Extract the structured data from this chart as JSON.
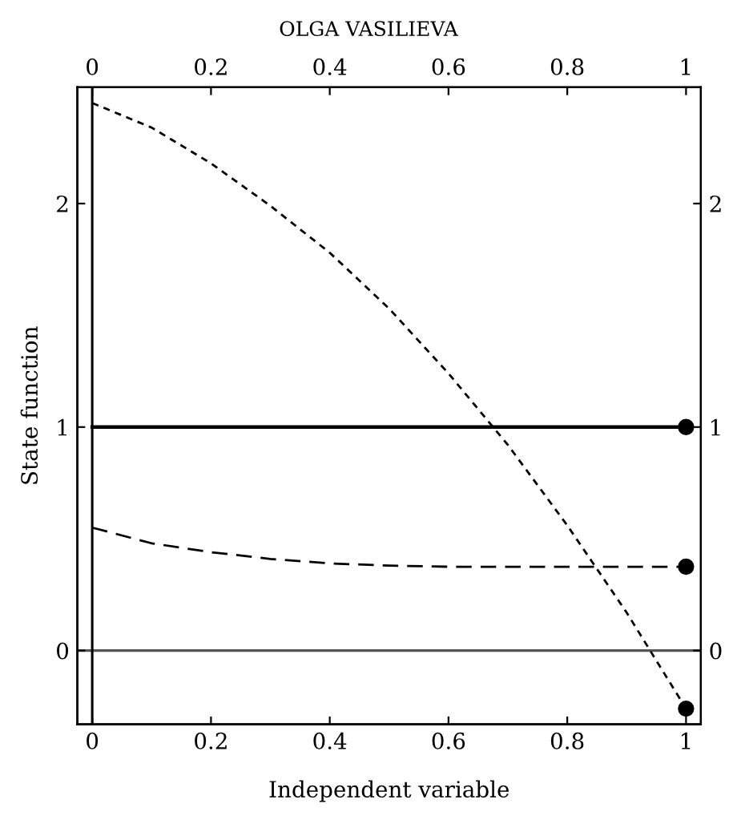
{
  "chart_data": {
    "type": "line",
    "title": "OLGA VASILIEVA",
    "xlabel": "Independent variable",
    "ylabel": "State function",
    "xlim": [
      -0.025,
      1.025
    ],
    "xticks": [
      0,
      0.2,
      0.4,
      0.6,
      0.8,
      1
    ],
    "x2lim": [
      -0.025,
      1.025
    ],
    "x2ticks": [
      0,
      0.2,
      0.4,
      0.6,
      0.8,
      1
    ],
    "ylim": [
      -0.33,
      2.52
    ],
    "yticks": [
      0,
      1,
      2
    ],
    "y2lim": [
      -0.33,
      2.52
    ],
    "y2ticks": [
      0,
      1,
      2
    ],
    "grid": false,
    "legend": false,
    "ref_lines": [
      {
        "axis": "y",
        "value": 0,
        "color": "#555555",
        "line_style": "solid"
      },
      {
        "axis": "x",
        "value": 0,
        "color": "#000000",
        "line_style": "solid"
      }
    ],
    "series": [
      {
        "color": "#000000",
        "line_style": "solid",
        "marker": "none",
        "x": [
          0,
          1
        ],
        "values": [
          1,
          1
        ]
      },
      {
        "color": "#000000",
        "line_style": "dashed",
        "marker": "none",
        "x": [
          0,
          0.1,
          0.2,
          0.3,
          0.4,
          0.5,
          0.6,
          0.7,
          0.8,
          0.9,
          1
        ],
        "values": [
          0.55,
          0.48,
          0.44,
          0.41,
          0.39,
          0.38,
          0.375,
          0.375,
          0.375,
          0.375,
          0.375
        ]
      },
      {
        "color": "#000000",
        "line_style": "dotted",
        "marker": "none",
        "x": [
          0,
          0.1,
          0.2,
          0.3,
          0.4,
          0.5,
          0.6,
          0.7,
          0.8,
          0.9,
          1
        ],
        "values": [
          2.45,
          2.34,
          2.18,
          1.99,
          1.78,
          1.53,
          1.24,
          0.92,
          0.56,
          0.17,
          -0.26
        ]
      },
      {
        "type": "scatter",
        "color": "#000000",
        "marker": "circle",
        "x": [
          1,
          1,
          1
        ],
        "values": [
          1,
          0.375,
          -0.26
        ]
      }
    ]
  }
}
